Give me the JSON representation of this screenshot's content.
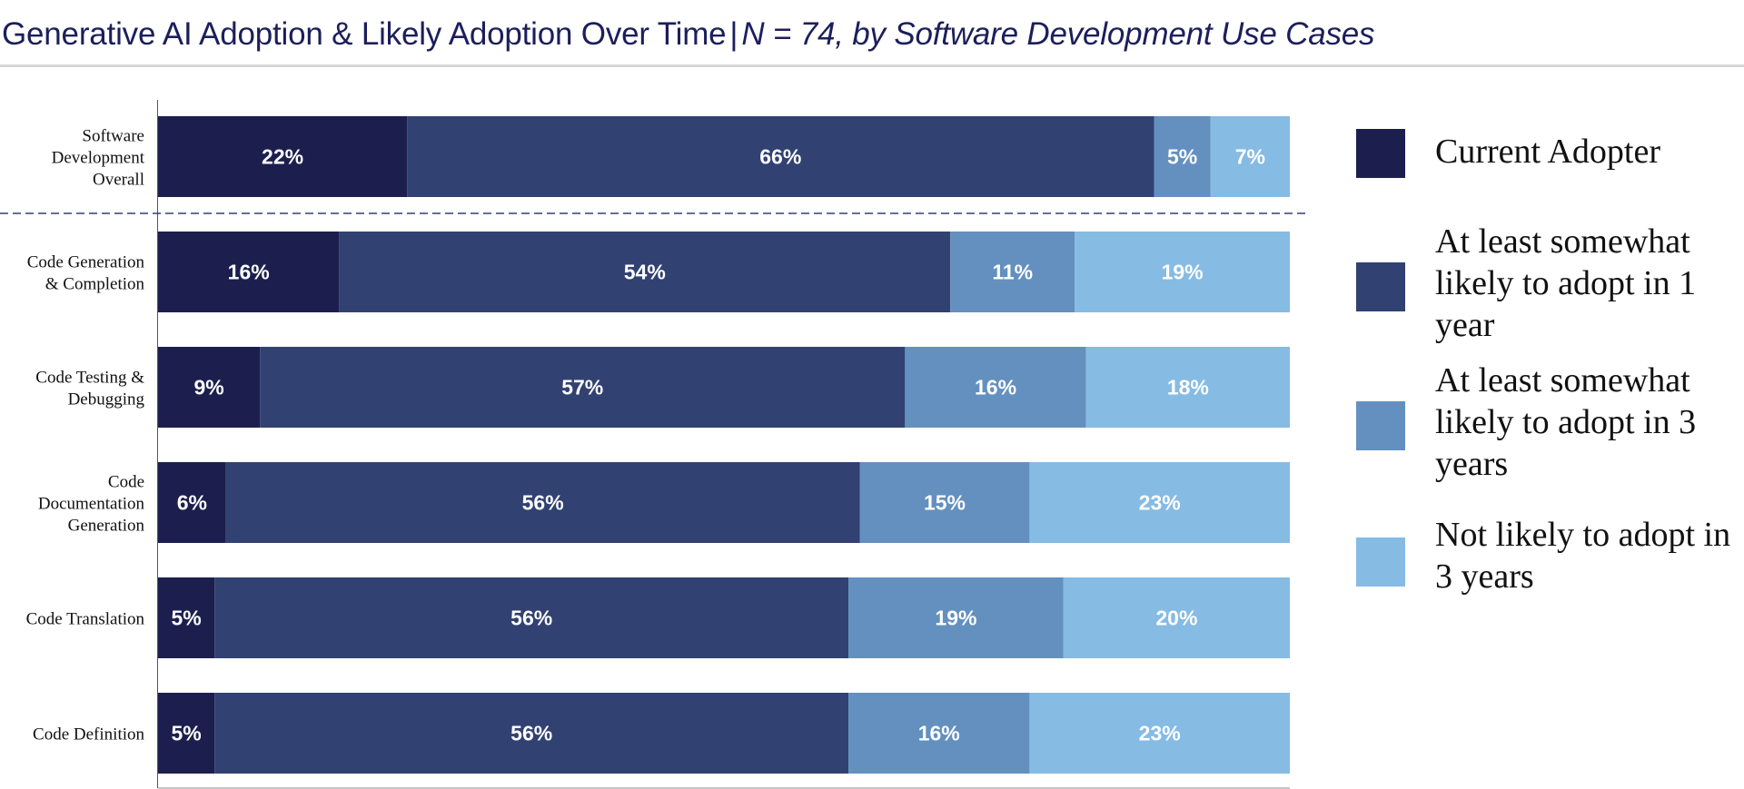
{
  "header": {
    "title_main": "Generative AI Adoption & Likely Adoption Over Time",
    "separator": "|",
    "title_sub": "N = 74, by Software Development Use Cases"
  },
  "legend": [
    {
      "label": "Current Adopter",
      "color": "#1c1f4e"
    },
    {
      "label": "At least somewhat likely to adopt in 1 year",
      "color": "#314172"
    },
    {
      "label": "At least somewhat likely to adopt in 3 years",
      "color": "#6390bf"
    },
    {
      "label": "Not likely to adopt in 3 years",
      "color": "#86bbe4"
    }
  ],
  "chart_data": {
    "type": "bar",
    "orientation": "horizontal",
    "stacked": true,
    "title": "Generative AI Adoption & Likely Adoption Over Time | N = 74, by Software Development Use Cases",
    "categories": [
      [
        "Software",
        "Development",
        "Overall"
      ],
      [
        "Code Generation",
        "& Completion"
      ],
      [
        "Code Testing &",
        "Debugging"
      ],
      [
        "Code",
        "Documentation",
        "Generation"
      ],
      [
        "Code Translation"
      ],
      [
        "Code Definition"
      ]
    ],
    "series": [
      {
        "name": "Current Adopter",
        "color": "#1c1f4e",
        "values": [
          22,
          16,
          9,
          6,
          5,
          5
        ]
      },
      {
        "name": "At least somewhat likely to adopt in 1 year",
        "color": "#314172",
        "values": [
          66,
          54,
          57,
          56,
          56,
          56
        ]
      },
      {
        "name": "At least somewhat likely to adopt in 3 years",
        "color": "#6390bf",
        "values": [
          5,
          11,
          16,
          15,
          19,
          16
        ]
      },
      {
        "name": "Not likely to adopt in 3 years",
        "color": "#86bbe4",
        "values": [
          7,
          19,
          18,
          23,
          20,
          23
        ]
      }
    ],
    "value_suffix": "%",
    "xlim": [
      0,
      100
    ],
    "separator_after_first_row": true,
    "legend_position": "right",
    "grid": false
  }
}
